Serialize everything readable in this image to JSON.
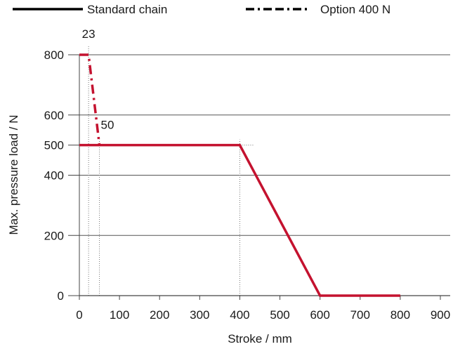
{
  "chart_data": {
    "type": "line",
    "xlabel": "Stroke / mm",
    "ylabel": "Max. pressure load / N",
    "xlim": [
      0,
      900
    ],
    "ylim": [
      0,
      800
    ],
    "xticks": [
      0,
      100,
      200,
      300,
      400,
      500,
      600,
      700,
      800,
      900
    ],
    "yticks": [
      0,
      200,
      400,
      500,
      600,
      800
    ],
    "grid": "horizontal",
    "legend_position": "top",
    "series": [
      {
        "name": "Standard chain",
        "style": "solid",
        "color": "#c4122f",
        "x": [
          0,
          400,
          600,
          800
        ],
        "y": [
          500,
          500,
          0,
          0
        ]
      },
      {
        "name": "Option 400 N",
        "style": "dash-dot",
        "color": "#c4122f",
        "x": [
          0,
          23,
          50
        ],
        "y": [
          800,
          800,
          500
        ]
      }
    ],
    "annotations": [
      {
        "text": "23",
        "x": 23
      },
      {
        "text": "50",
        "x": 50
      }
    ],
    "reference_lines": [
      {
        "x": 23,
        "y_from": 0,
        "y_to": 800
      },
      {
        "x": 50,
        "y_from": 0,
        "y_to": 500
      },
      {
        "x": 400,
        "y_from": 0,
        "y_to": 500
      }
    ]
  }
}
